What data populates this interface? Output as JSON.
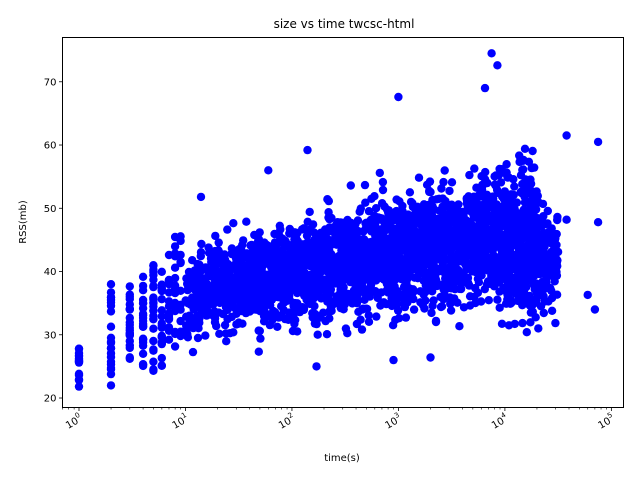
{
  "chart_data": {
    "type": "scatter",
    "title": "size vs time twcsc-html",
    "xlabel": "time(s)",
    "ylabel": "RSS(mb)",
    "xscale": "log",
    "xlim": [
      0.7,
      130000
    ],
    "ylim": [
      18.5,
      77
    ],
    "x_ticks": [
      {
        "value": 1,
        "base": "10",
        "exp": "0"
      },
      {
        "value": 10,
        "base": "10",
        "exp": "1"
      },
      {
        "value": 100,
        "base": "10",
        "exp": "2"
      },
      {
        "value": 1000,
        "base": "10",
        "exp": "3"
      },
      {
        "value": 10000,
        "base": "10",
        "exp": "4"
      },
      {
        "value": 100000,
        "base": "10",
        "exp": "5"
      }
    ],
    "y_ticks": [
      {
        "value": 20,
        "label": "20"
      },
      {
        "value": 30,
        "label": "30"
      },
      {
        "value": 40,
        "label": "40"
      },
      {
        "value": 50,
        "label": "50"
      },
      {
        "value": 60,
        "label": "60"
      },
      {
        "value": 70,
        "label": "70"
      }
    ],
    "grid": false,
    "marker_color": "#0000ff",
    "notable_points": [
      {
        "x": 7500,
        "y": 74.5
      },
      {
        "x": 8500,
        "y": 72.6
      },
      {
        "x": 6500,
        "y": 69.0
      },
      {
        "x": 1000,
        "y": 67.6
      },
      {
        "x": 75000,
        "y": 60.5
      },
      {
        "x": 75000,
        "y": 47.8
      },
      {
        "x": 70000,
        "y": 34.0
      },
      {
        "x": 60000,
        "y": 36.3
      },
      {
        "x": 38000,
        "y": 61.5
      },
      {
        "x": 38000,
        "y": 48.2
      },
      {
        "x": 60,
        "y": 56.0
      },
      {
        "x": 14,
        "y": 51.8
      },
      {
        "x": 140,
        "y": 59.2
      },
      {
        "x": 1,
        "y": 21.8
      },
      {
        "x": 1,
        "y": 27.8
      },
      {
        "x": 2,
        "y": 22.0
      },
      {
        "x": 2,
        "y": 38.0
      },
      {
        "x": 5,
        "y": 24.3
      },
      {
        "x": 5,
        "y": 41.0
      },
      {
        "x": 900,
        "y": 26.0
      },
      {
        "x": 2000,
        "y": 26.4
      },
      {
        "x": 170,
        "y": 25.0
      }
    ]
  }
}
